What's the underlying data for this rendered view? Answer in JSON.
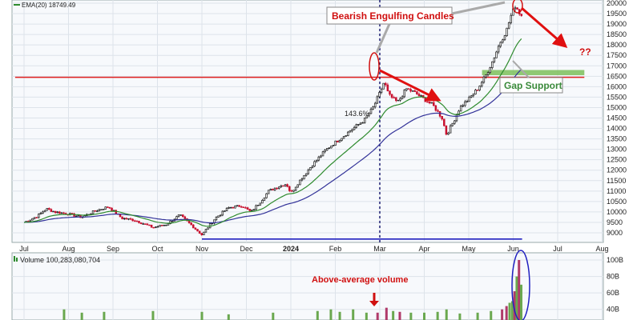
{
  "chart_data": {
    "type": "candlestick",
    "price_panel": {
      "indicator_label": "EMA(20) 18749.49",
      "y_ticks": [
        "9000",
        "9500",
        "10000",
        "10500",
        "11000",
        "11500",
        "12000",
        "12500",
        "13000",
        "13500",
        "14000",
        "14500",
        "15000",
        "15500",
        "16000",
        "16500",
        "17000",
        "17500",
        "18000",
        "18500",
        "19000",
        "19500",
        "20000"
      ],
      "ylim": [
        8550,
        20200
      ],
      "x_ticks": [
        "Jul",
        "Aug",
        "Sep",
        "Oct",
        "Nov",
        "Dec",
        "2024",
        "Feb",
        "Mar",
        "Apr",
        "May",
        "Jun",
        "Jul",
        "Aug"
      ],
      "grid": true,
      "ema_fast_color": "#2e8b2e",
      "ema_slow_color": "#333399",
      "up_color": "#1a1a1a",
      "down_color": "#c8102e",
      "close_anchors": [
        {
          "m": 0.0,
          "p": 9500
        },
        {
          "m": 0.3,
          "p": 9800
        },
        {
          "m": 0.5,
          "p": 10150
        },
        {
          "m": 0.7,
          "p": 10000
        },
        {
          "m": 1.0,
          "p": 9900
        },
        {
          "m": 1.3,
          "p": 9750
        },
        {
          "m": 1.6,
          "p": 10050
        },
        {
          "m": 1.9,
          "p": 10250
        },
        {
          "m": 2.2,
          "p": 9700
        },
        {
          "m": 2.5,
          "p": 9600
        },
        {
          "m": 2.9,
          "p": 9250
        },
        {
          "m": 3.2,
          "p": 9400
        },
        {
          "m": 3.5,
          "p": 9850
        },
        {
          "m": 3.8,
          "p": 9300
        },
        {
          "m": 4.0,
          "p": 8900
        },
        {
          "m": 4.3,
          "p": 9700
        },
        {
          "m": 4.6,
          "p": 10200
        },
        {
          "m": 4.9,
          "p": 10300
        },
        {
          "m": 5.1,
          "p": 10000
        },
        {
          "m": 5.3,
          "p": 10450
        },
        {
          "m": 5.5,
          "p": 11000
        },
        {
          "m": 5.7,
          "p": 11200
        },
        {
          "m": 5.9,
          "p": 11350
        },
        {
          "m": 6.0,
          "p": 10900
        },
        {
          "m": 6.2,
          "p": 11500
        },
        {
          "m": 6.5,
          "p": 12300
        },
        {
          "m": 6.8,
          "p": 13000
        },
        {
          "m": 7.1,
          "p": 13500
        },
        {
          "m": 7.4,
          "p": 14000
        },
        {
          "m": 7.65,
          "p": 14400
        },
        {
          "m": 7.85,
          "p": 15000
        },
        {
          "m": 8.0,
          "p": 15700
        },
        {
          "m": 8.1,
          "p": 16250
        },
        {
          "m": 8.2,
          "p": 15600
        },
        {
          "m": 8.4,
          "p": 15250
        },
        {
          "m": 8.6,
          "p": 15900
        },
        {
          "m": 8.8,
          "p": 15700
        },
        {
          "m": 9.0,
          "p": 15400
        },
        {
          "m": 9.2,
          "p": 15100
        },
        {
          "m": 9.4,
          "p": 14500
        },
        {
          "m": 9.5,
          "p": 13700
        },
        {
          "m": 9.65,
          "p": 14300
        },
        {
          "m": 9.8,
          "p": 15000
        },
        {
          "m": 10.0,
          "p": 15400
        },
        {
          "m": 10.2,
          "p": 15900
        },
        {
          "m": 10.4,
          "p": 16600
        },
        {
          "m": 10.55,
          "p": 17300
        },
        {
          "m": 10.7,
          "p": 18100
        },
        {
          "m": 10.85,
          "p": 18700
        },
        {
          "m": 10.95,
          "p": 19400
        },
        {
          "m": 11.05,
          "p": 19900
        },
        {
          "m": 11.15,
          "p": 19500
        },
        {
          "m": 11.2,
          "p": 19400
        }
      ],
      "horizontal_lines": [
        {
          "price": 16450,
          "color": "#e02020",
          "m_start": -0.2,
          "m_end": 12.6
        },
        {
          "price": 8700,
          "color": "#2020c0",
          "m_start": 4.0,
          "m_end": 11.2
        }
      ],
      "vertical_line": {
        "m": 8.0,
        "color": "#10106a"
      },
      "gap_support_zone": {
        "m_start": 10.3,
        "m_end": 12.6,
        "p_low": 16550,
        "p_high": 16800,
        "color": "#7dbf5a"
      },
      "annotations": {
        "engulfing_label": "Bearish Engulfing Candles",
        "gap_label": "Gap Support",
        "pct_label": "143.6%",
        "question_marks": "??"
      }
    },
    "volume_panel": {
      "label": "Volume 100,283,080,704",
      "y_ticks": [
        "40B",
        "60B",
        "80B",
        "100B"
      ],
      "ylim": [
        30,
        105
      ],
      "annotation": "Above-average volume",
      "bars": [
        {
          "m": 0.9,
          "v": 40
        },
        {
          "m": 1.3,
          "v": 36
        },
        {
          "m": 1.8,
          "v": 37
        },
        {
          "m": 2.9,
          "v": 38
        },
        {
          "m": 4.0,
          "v": 37
        },
        {
          "m": 4.6,
          "v": 34
        },
        {
          "m": 5.6,
          "v": 36
        },
        {
          "m": 6.6,
          "v": 38
        },
        {
          "m": 6.9,
          "v": 40
        },
        {
          "m": 7.1,
          "v": 37
        },
        {
          "m": 7.4,
          "v": 40
        },
        {
          "m": 7.7,
          "v": 36
        },
        {
          "m": 7.95,
          "v": 36
        },
        {
          "m": 8.15,
          "v": 42
        },
        {
          "m": 8.3,
          "v": 38
        },
        {
          "m": 8.45,
          "v": 37
        },
        {
          "m": 8.7,
          "v": 36
        },
        {
          "m": 9.0,
          "v": 36
        },
        {
          "m": 9.3,
          "v": 37
        },
        {
          "m": 9.5,
          "v": 40
        },
        {
          "m": 9.8,
          "v": 35
        },
        {
          "m": 10.2,
          "v": 36
        },
        {
          "m": 10.5,
          "v": 38
        },
        {
          "m": 10.75,
          "v": 40
        },
        {
          "m": 10.85,
          "v": 44
        },
        {
          "m": 10.92,
          "v": 48
        },
        {
          "m": 10.98,
          "v": 50
        },
        {
          "m": 11.03,
          "v": 62
        },
        {
          "m": 11.08,
          "v": 80
        },
        {
          "m": 11.13,
          "v": 100
        },
        {
          "m": 11.18,
          "v": 70
        }
      ]
    }
  }
}
